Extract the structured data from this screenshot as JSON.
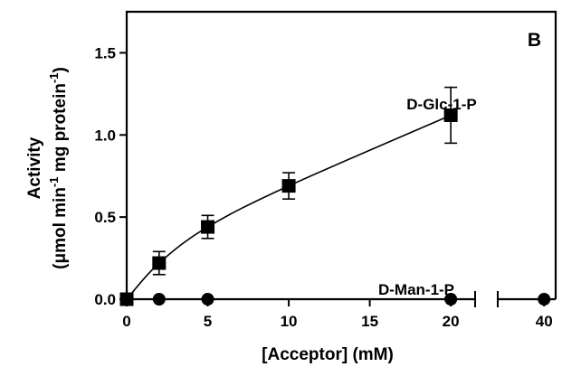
{
  "chart_data": {
    "type": "scatter",
    "panel_label": "B",
    "ylabel_line1": "Activity",
    "ylabel_line2_prefix": "(μmol min",
    "ylabel_sup1": "-1",
    "ylabel_mid": " mg protein",
    "ylabel_sup2": "-1",
    "ylabel_suffix": ")",
    "xlabel": "[Acceptor] (mM)",
    "ylim": [
      0,
      1.75
    ],
    "y_ticks": [
      0.0,
      0.5,
      1.0,
      1.5
    ],
    "y_tick_labels": [
      "0.0",
      "0.5",
      "1.0",
      "1.5"
    ],
    "x_segments": [
      {
        "range": [
          0,
          21.5
        ],
        "ticks": [
          0,
          5,
          10,
          15,
          20
        ],
        "tick_labels": [
          "0",
          "5",
          "10",
          "15",
          "20"
        ]
      },
      {
        "range": [
          36,
          41
        ],
        "ticks": [
          40
        ],
        "tick_labels": [
          "40"
        ]
      }
    ],
    "x_axis_break": true,
    "grid": false,
    "series": [
      {
        "name": "D-Glc-1-P",
        "marker": "square",
        "x": [
          0,
          2,
          5,
          10,
          20
        ],
        "y": [
          0.0,
          0.22,
          0.44,
          0.69,
          1.12
        ],
        "err": [
          0.0,
          0.07,
          0.07,
          0.08,
          0.17
        ],
        "fit_curve": true
      },
      {
        "name": "D-Man-1-P",
        "marker": "circle",
        "x": [
          0,
          2,
          5,
          20,
          40
        ],
        "y": [
          0.0,
          0.0,
          0.0,
          0.0,
          0.0
        ],
        "err": [
          0,
          0,
          0,
          0,
          0
        ],
        "fit_curve": false
      }
    ]
  }
}
